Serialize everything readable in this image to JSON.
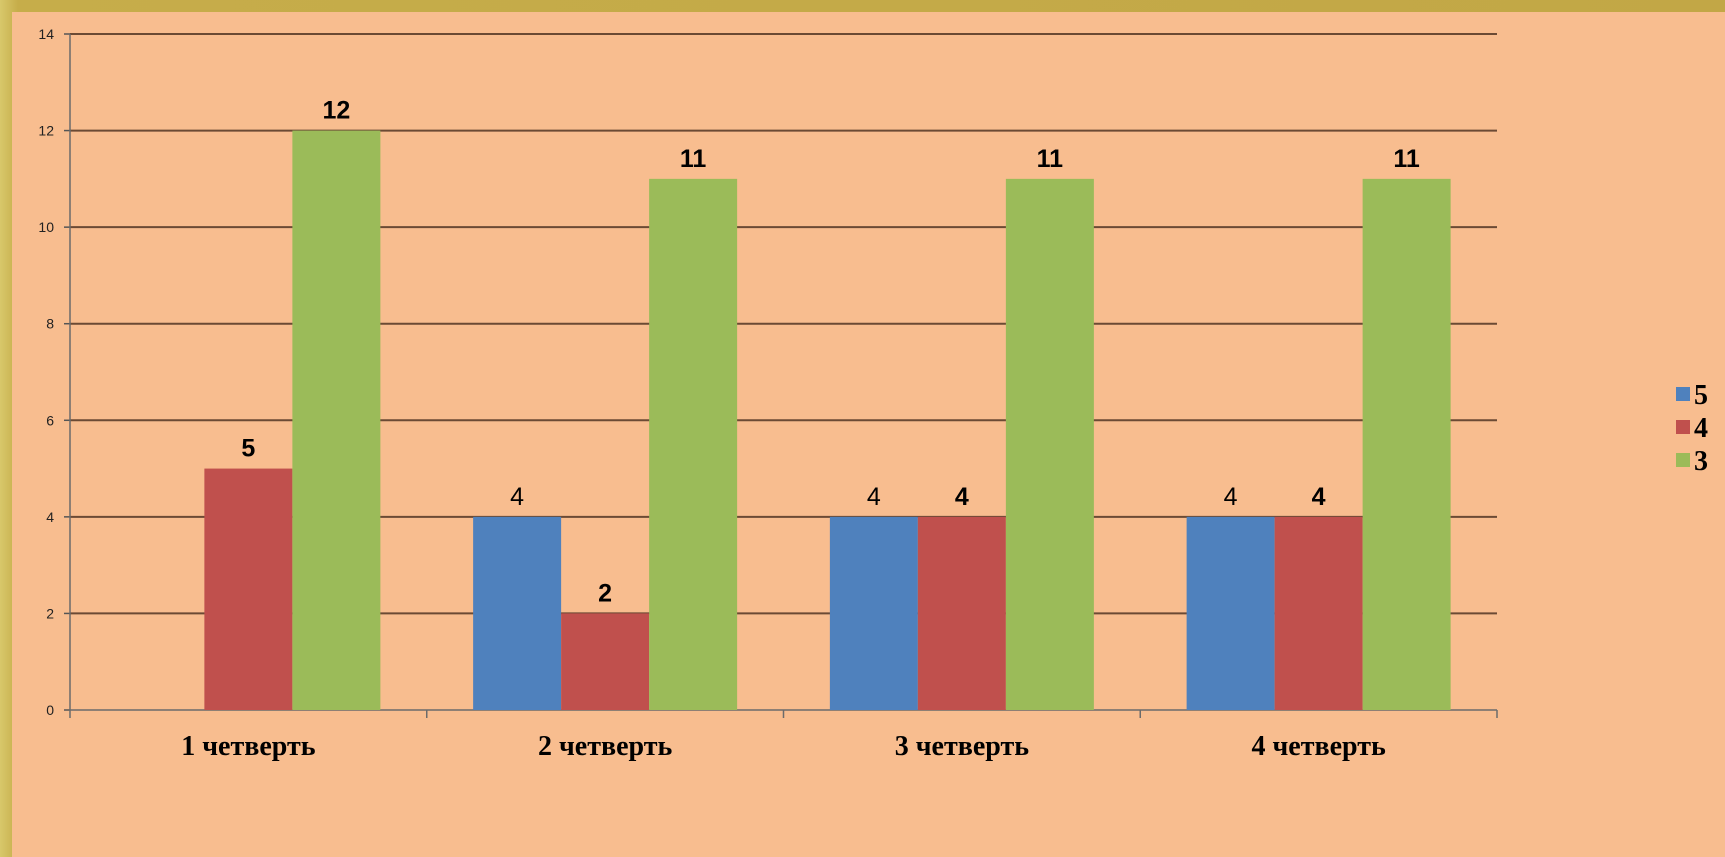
{
  "chart_data": {
    "type": "bar",
    "categories": [
      "1 четверть",
      "2 четверть",
      "3 четверть",
      "4 четверть"
    ],
    "series": [
      {
        "name": "5",
        "color": "#4f81bd",
        "values": [
          0,
          4,
          4,
          4
        ],
        "labels": [
          null,
          "4",
          "4",
          "4"
        ]
      },
      {
        "name": "4",
        "color": "#c0504d",
        "values": [
          5,
          2,
          4,
          4
        ],
        "labels": [
          "5",
          "2",
          "4",
          "4"
        ]
      },
      {
        "name": "3",
        "color": "#9bbb59",
        "values": [
          12,
          11,
          11,
          11
        ],
        "labels": [
          "12",
          "11",
          "11",
          "11"
        ]
      }
    ],
    "ylim": [
      0,
      14
    ],
    "yticks": [
      0,
      2,
      4,
      6,
      8,
      10,
      12,
      14
    ],
    "grid": true,
    "legend": "right"
  }
}
